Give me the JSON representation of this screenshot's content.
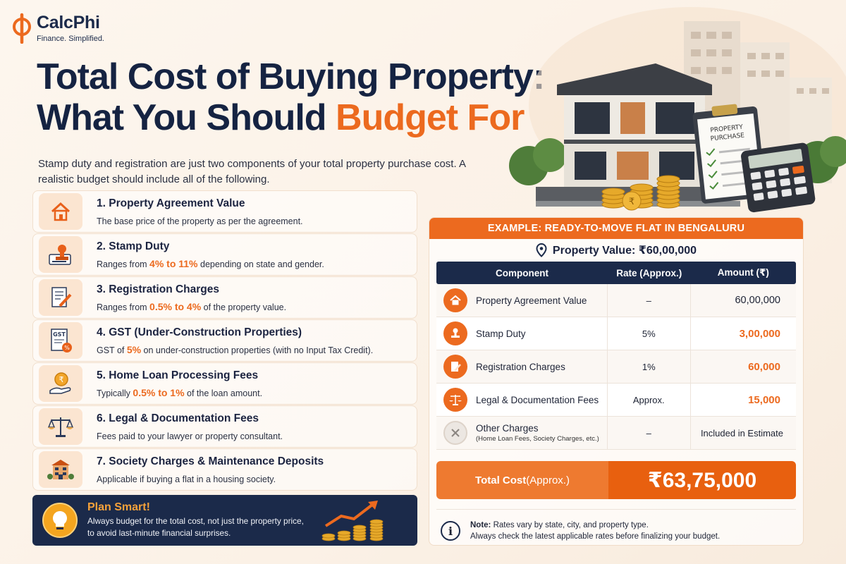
{
  "brand": {
    "name": "CalcPhi",
    "tagline": "Finance. Simplified."
  },
  "title": {
    "line1": "Total Cost of Buying Property:",
    "line2_prefix": "What You Should ",
    "line2_accent": "Budget For"
  },
  "intro": "Stamp duty and registration are just two components of your total property purchase cost. A realistic budget should include all of the following.",
  "items": [
    {
      "title": "1.  Property Agreement Value",
      "desc_pre": "The base price of the property as per the agreement.",
      "hl": "",
      "desc_post": "",
      "icon": "house-icon"
    },
    {
      "title": "2. Stamp Duty",
      "desc_pre": "Ranges from ",
      "hl": "4% to 11%",
      "desc_post": " depending on state and gender.",
      "icon": "stamp-icon"
    },
    {
      "title": "3. Registration Charges",
      "desc_pre": "Ranges from ",
      "hl": "0.5% to 4%",
      "desc_post": " of the property value.",
      "icon": "document-pen-icon"
    },
    {
      "title": "4.  GST (Under-Construction Properties)",
      "desc_pre": "GST of ",
      "hl": "5%",
      "desc_post": " on under-construction properties (with no Input Tax Credit).",
      "icon": "gst-document-icon"
    },
    {
      "title": "5. Home Loan Processing Fees",
      "desc_pre": "Typically ",
      "hl": "0.5% to 1%",
      "desc_post": " of the loan amount.",
      "icon": "rupee-hand-icon"
    },
    {
      "title": "6. Legal & Documentation Fees",
      "desc_pre": "Fees paid to your lawyer or property consultant.",
      "hl": "",
      "desc_post": "",
      "icon": "scales-icon"
    },
    {
      "title": "7. Society Charges & Maintenance Deposits",
      "desc_pre": "Applicable if buying a flat in a housing society.",
      "hl": "",
      "desc_post": "",
      "icon": "building-icon"
    }
  ],
  "gst_badge": "GST",
  "plan": {
    "title": "Plan Smart!",
    "line1": "Always budget for the total cost, not just the property price,",
    "line2": "to avoid last-minute financial surprises."
  },
  "clipboard": {
    "line1": "PROPERTY",
    "line2": "PURCHASE"
  },
  "example": {
    "heading": "EXAMPLE: READY-TO-MOVE FLAT IN BENGALURU",
    "value_label": "Property Value: ₹60,00,000",
    "columns": [
      "Component",
      "Rate (Approx.)",
      "Amount (₹)"
    ],
    "rows": [
      {
        "component": "Property Agreement Value",
        "sub": "",
        "rate": "–",
        "amount": "60,00,000",
        "highlight": false,
        "icon": "house-icon"
      },
      {
        "component": "Stamp Duty",
        "sub": "",
        "rate": "5%",
        "amount": "3,00,000",
        "highlight": true,
        "icon": "stamp-icon"
      },
      {
        "component": "Registration Charges",
        "sub": "",
        "rate": "1%",
        "amount": "60,000",
        "highlight": true,
        "icon": "document-pen-icon"
      },
      {
        "component": "Legal & Documentation Fees",
        "sub": "",
        "rate": "Approx.",
        "amount": "15,000",
        "highlight": true,
        "icon": "scales-icon"
      },
      {
        "component": "Other Charges",
        "sub": "(Home Loan Fees, Society Charges, etc.)",
        "rate": "–",
        "amount": "Included in Estimate",
        "highlight": false,
        "icon": "close-icon"
      }
    ],
    "total_label": "Total Cost",
    "total_label_suffix": " (Approx.)",
    "total_value": "₹63,75,000",
    "note_bold": "Note:",
    "note_line1": " Rates vary by state, city, and property type.",
    "note_line2": "Always check the latest applicable rates before finalizing your budget.",
    "note_icon": "i"
  },
  "colors": {
    "accent": "#ec6a1f",
    "navy": "#1b2a4a",
    "background": "#fdf6ee"
  }
}
